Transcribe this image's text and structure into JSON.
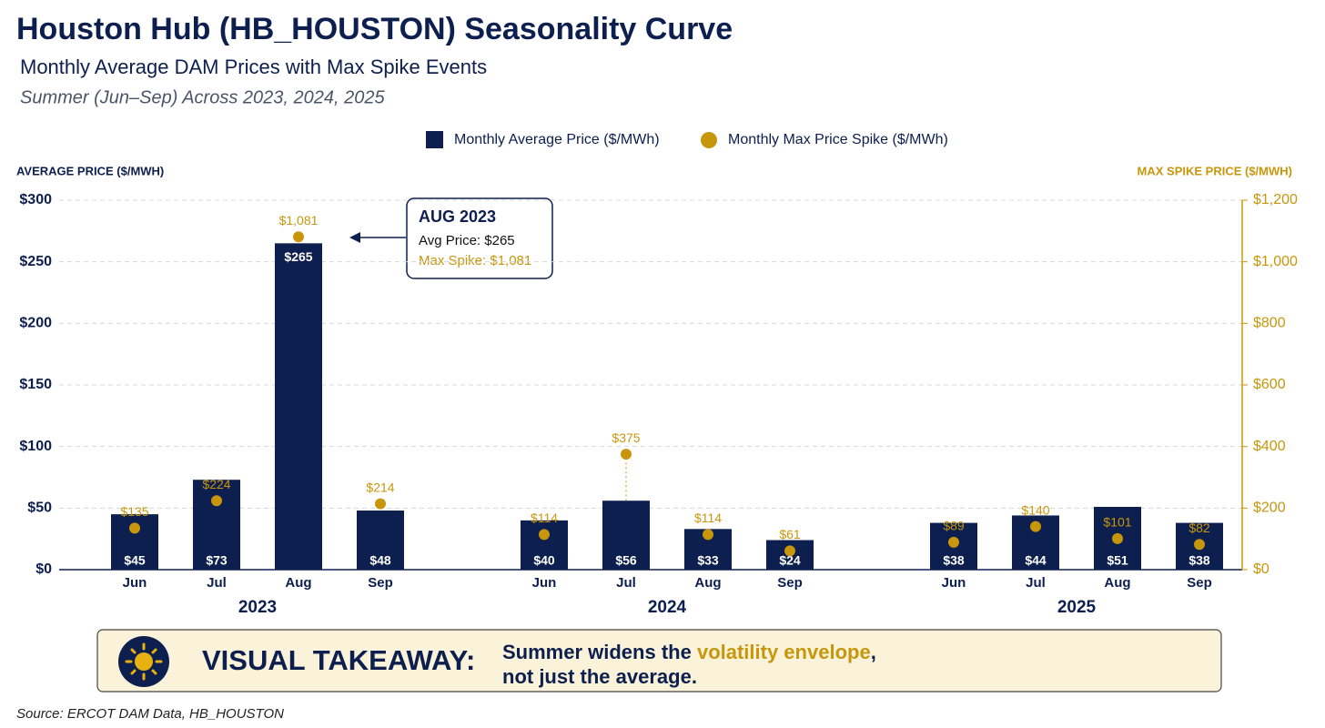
{
  "chart_data": {
    "type": "bar",
    "title": "Houston Hub (HB_HOUSTON) Seasonality Curve",
    "subtitle": "Monthly Average DAM Prices with Max Spike Events",
    "caption": "Summer (Jun–Sep) Across 2023, 2024, 2025",
    "y_label": "AVERAGE PRICE ($/MWH)",
    "y2_label": "MAX SPIKE PRICE ($/MWH)",
    "categories": [
      "Jun",
      "Jul",
      "Aug",
      "Sep",
      "Jun",
      "Jul",
      "Aug",
      "Sep",
      "Jun",
      "Jul",
      "Aug",
      "Sep"
    ],
    "groups": [
      "2023",
      "2024",
      "2025"
    ],
    "ylim": [
      0,
      300
    ],
    "yticks": [
      {
        "value": 0,
        "label": "$0"
      },
      {
        "value": 50,
        "label": "$50"
      },
      {
        "value": 100,
        "label": "$100"
      },
      {
        "value": 150,
        "label": "$150"
      },
      {
        "value": 200,
        "label": "$200"
      },
      {
        "value": 250,
        "label": "$250"
      },
      {
        "value": 300,
        "label": "$300"
      }
    ],
    "y2lim": [
      0,
      1200
    ],
    "y2ticks": [
      {
        "value": 0,
        "label": "$0"
      },
      {
        "value": 200,
        "label": "$200"
      },
      {
        "value": 400,
        "label": "$400"
      },
      {
        "value": 600,
        "label": "$600"
      },
      {
        "value": 800,
        "label": "$800"
      },
      {
        "value": 1000,
        "label": "$1,000"
      },
      {
        "value": 1200,
        "label": "$1,200"
      }
    ],
    "grid": true,
    "series": [
      {
        "name": "Monthly Average Price ($/MWh)",
        "type": "bar",
        "color": "#0d1f4e",
        "values": [
          45,
          73,
          265,
          48,
          40,
          56,
          33,
          24,
          38,
          44,
          51,
          38
        ],
        "value_labels": [
          "$45",
          "$73",
          "$265",
          "$48",
          "$40",
          "$56",
          "$33",
          "$24",
          "$38",
          "$44",
          "$51",
          "$38"
        ]
      },
      {
        "name": "Monthly Max Price Spike ($/MWh)",
        "type": "scatter",
        "axis": "y2",
        "color": "#c8960c",
        "values": [
          135,
          224,
          1081,
          214,
          114,
          375,
          114,
          61,
          89,
          140,
          101,
          82
        ],
        "value_labels": [
          "$135",
          "$224",
          "$1,081",
          "$214",
          "$114",
          "$375",
          "$114",
          "$61",
          "$89",
          "$140",
          "$101",
          "$82"
        ]
      }
    ],
    "annotation": {
      "title": "AUG 2023",
      "line1": "Avg Price: $265",
      "line2": "Max Spike: $1,081"
    }
  },
  "takeaway": {
    "heading": "VISUAL TAKEAWAY:",
    "text_before": "Summer widens the ",
    "highlight": "volatility envelope",
    "text_after": ",",
    "line2": "not just the average."
  },
  "source": "Source: ERCOT DAM Data, HB_HOUSTON"
}
